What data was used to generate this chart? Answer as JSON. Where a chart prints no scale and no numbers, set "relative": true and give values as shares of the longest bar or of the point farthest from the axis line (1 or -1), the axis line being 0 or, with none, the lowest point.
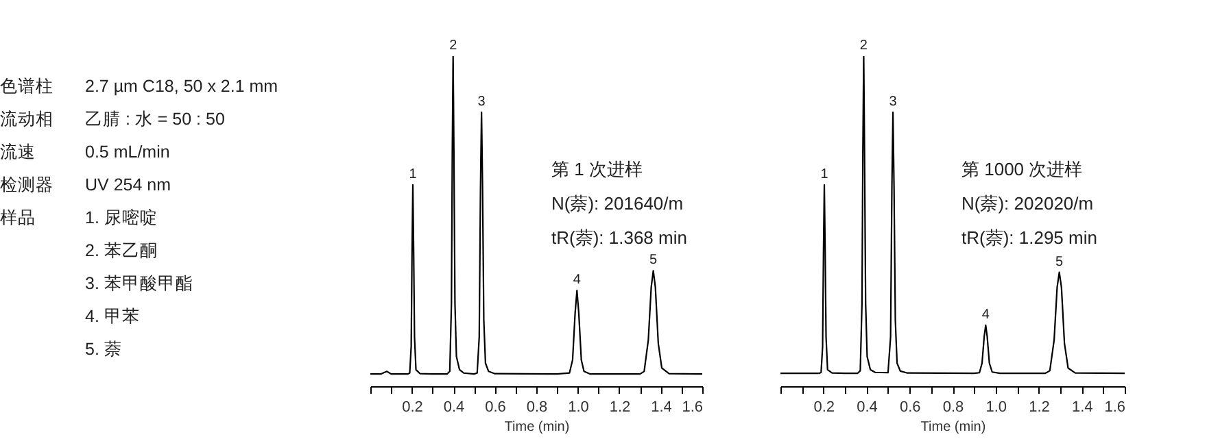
{
  "chart_data": [
    {
      "type": "line",
      "relative": true,
      "xlabel": "Time (min)",
      "xlim": [
        0,
        1.6
      ],
      "xticks": [
        {
          "value": 0,
          "label": null
        },
        {
          "value": 0.1,
          "label": null
        },
        0.2,
        {
          "value": 0.3,
          "label": null
        },
        0.4,
        {
          "value": 0.5,
          "label": null
        },
        0.6,
        {
          "value": 0.7,
          "label": null
        },
        0.8,
        {
          "value": 0.9,
          "label": null
        },
        {
          "value": 1.0,
          "label": "1.0"
        },
        {
          "value": 1.1,
          "label": null
        },
        1.2,
        {
          "value": 1.3,
          "label": null
        },
        1.4,
        {
          "value": 1.5,
          "label": null
        },
        1.6
      ],
      "x": [
        0,
        0.05,
        0.08,
        0.1,
        0.18,
        0.19,
        0.197,
        0.201,
        0.205,
        0.209,
        0.213,
        0.22,
        0.24,
        0.3,
        0.37,
        0.383,
        0.391,
        0.395,
        0.399,
        0.403,
        0.408,
        0.415,
        0.43,
        0.45,
        0.5,
        0.515,
        0.525,
        0.531,
        0.536,
        0.541,
        0.547,
        0.555,
        0.57,
        0.6,
        0.9,
        0.96,
        0.975,
        0.987,
        0.996,
        1.005,
        1.017,
        1.03,
        1.06,
        1.3,
        1.32,
        1.34,
        1.354,
        1.364,
        1.374,
        1.388,
        1.405,
        1.44,
        1.6
      ],
      "series": [
        {
          "color": "#000000",
          "values": [
            0.037,
            0.037,
            0.045,
            0.037,
            0.037,
            0.04,
            0.12,
            0.4,
            0.61,
            0.4,
            0.15,
            0.05,
            0.038,
            0.037,
            0.037,
            0.045,
            0.25,
            0.7,
            1,
            0.7,
            0.25,
            0.09,
            0.05,
            0.04,
            0.037,
            0.04,
            0.15,
            0.6,
            0.83,
            0.6,
            0.2,
            0.07,
            0.045,
            0.038,
            0.037,
            0.04,
            0.08,
            0.22,
            0.29,
            0.22,
            0.08,
            0.045,
            0.037,
            0.037,
            0.045,
            0.14,
            0.3,
            0.35,
            0.3,
            0.13,
            0.055,
            0.038,
            0.037
          ]
        }
      ],
      "annotations": [
        {
          "text": "1",
          "x": 0.205,
          "y": 0.61
        },
        {
          "text": "2",
          "x": 0.399,
          "y": 1
        },
        {
          "text": "3",
          "x": 0.536,
          "y": 0.83
        },
        {
          "text": "4",
          "x": 0.996,
          "y": 0.29
        },
        {
          "text": "5",
          "x": 1.364,
          "y": 0.35
        },
        "色谱柱",
        "2.7 µm C18, 50 x 2.1 mm",
        "流动相",
        "乙腈 : 水 = 50 : 50",
        "流速",
        "0.5 mL/min",
        "检测器",
        "UV 254 nm",
        "样品",
        "1. 尿嘧啶",
        "2. 苯乙酮",
        "3. 苯甲酸甲酯",
        "4. 甲苯",
        "5. 萘",
        "第 1 次进样",
        "N(萘): 201640/m",
        "tR(萘): 1.368 min"
      ]
    },
    {
      "type": "line",
      "relative": true,
      "xlabel": "Time (min)",
      "xlim": [
        0,
        1.6
      ],
      "xticks": [
        {
          "value": 0,
          "label": null
        },
        {
          "value": 0.1,
          "label": null
        },
        0.2,
        {
          "value": 0.3,
          "label": null
        },
        0.4,
        {
          "value": 0.5,
          "label": null
        },
        0.6,
        {
          "value": 0.7,
          "label": null
        },
        0.8,
        {
          "value": 0.9,
          "label": null
        },
        {
          "value": 1.0,
          "label": "1.0"
        },
        {
          "value": 1.1,
          "label": null
        },
        1.2,
        {
          "value": 1.3,
          "label": null
        },
        1.4,
        {
          "value": 1.5,
          "label": null
        },
        1.6
      ],
      "x": [
        0,
        0.1,
        0.18,
        0.189,
        0.196,
        0.2,
        0.204,
        0.208,
        0.212,
        0.219,
        0.24,
        0.3,
        0.358,
        0.371,
        0.379,
        0.383,
        0.387,
        0.391,
        0.396,
        0.403,
        0.418,
        0.44,
        0.5,
        0.512,
        0.518,
        0.523,
        0.528,
        0.534,
        0.542,
        0.557,
        0.59,
        0.9,
        0.925,
        0.937,
        0.947,
        0.954,
        0.961,
        0.971,
        0.984,
        1.02,
        1.23,
        1.252,
        1.272,
        1.286,
        1.296,
        1.306,
        1.32,
        1.337,
        1.37,
        1.6
      ],
      "series": [
        {
          "color": "#000000",
          "values": [
            0.039,
            0.039,
            0.039,
            0.042,
            0.12,
            0.4,
            0.61,
            0.4,
            0.15,
            0.05,
            0.04,
            0.039,
            0.039,
            0.047,
            0.25,
            0.7,
            1,
            0.7,
            0.25,
            0.09,
            0.05,
            0.042,
            0.041,
            0.15,
            0.6,
            0.83,
            0.6,
            0.2,
            0.07,
            0.046,
            0.04,
            0.039,
            0.041,
            0.07,
            0.15,
            0.185,
            0.15,
            0.07,
            0.043,
            0.039,
            0.039,
            0.047,
            0.14,
            0.3,
            0.345,
            0.3,
            0.13,
            0.055,
            0.04,
            0.039
          ]
        }
      ],
      "annotations": [
        {
          "text": "1",
          "x": 0.204,
          "y": 0.61
        },
        {
          "text": "2",
          "x": 0.387,
          "y": 1
        },
        {
          "text": "3",
          "x": 0.523,
          "y": 0.83
        },
        {
          "text": "4",
          "x": 0.954,
          "y": 0.185
        },
        {
          "text": "5",
          "x": 1.296,
          "y": 0.345
        },
        "第 1000 次进样",
        "N(萘): 202020/m",
        "tR(萘): 1.295 min"
      ]
    }
  ]
}
